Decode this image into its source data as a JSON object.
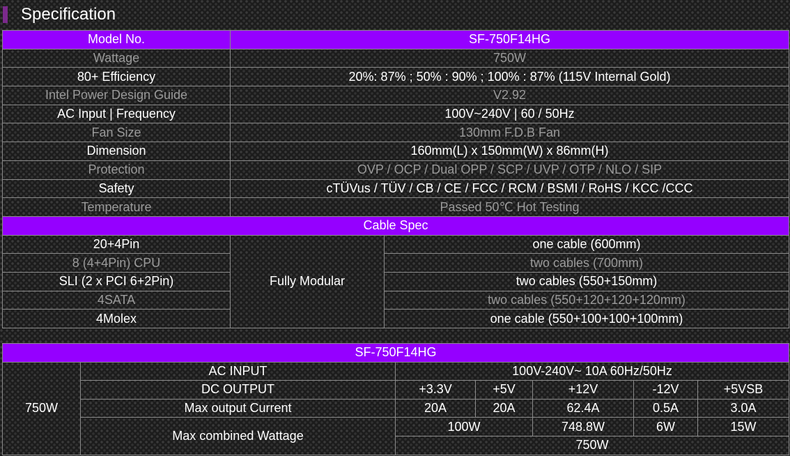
{
  "heading": {
    "title": "Specification"
  },
  "spec": {
    "model_label": "Model No.",
    "model_value": "SF-750F14HG",
    "rows": [
      {
        "label": "Wattage",
        "value": "750W"
      },
      {
        "label": "80+ Efficiency",
        "value": "20%: 87% ; 50% : 90% ; 100% : 87% (115V Internal Gold)"
      },
      {
        "label": "Intel Power Design Guide",
        "value": "V2.92"
      },
      {
        "label": "AC Input | Frequency",
        "value": "100V~240V | 60 / 50Hz"
      },
      {
        "label": "Fan Size",
        "value": "130mm F.D.B Fan"
      },
      {
        "label": "Dimension",
        "value": "160mm(L) x 150mm(W) x 86mm(H)"
      },
      {
        "label": "Protection",
        "value": "OVP / OCP / Dual OPP / SCP / UVP / OTP / NLO / SIP"
      },
      {
        "label": "Safety",
        "value": "cTÜVus / TÜV / CB / CE / FCC / RCM / BSMI / RoHS / KCC /CCC"
      },
      {
        "label": "Temperature",
        "value": "Passed 50℃ Hot Testing"
      }
    ],
    "cable_header": "Cable Spec",
    "modular": "Fully Modular",
    "cables": [
      {
        "connector": "20+4Pin",
        "detail": "one cable (600mm)"
      },
      {
        "connector": "8 (4+4Pin) CPU",
        "detail": "two cables (700mm)"
      },
      {
        "connector": "SLI (2 x PCI 6+2Pin)",
        "detail": "two cables (550+150mm)"
      },
      {
        "connector": "4SATA",
        "detail": "two cables (550+120+120+120mm)"
      },
      {
        "connector": "4Molex",
        "detail": "one cable (550+100+100+100mm)"
      }
    ]
  },
  "power": {
    "model": "SF-750F14HG",
    "wattage": "750W",
    "ac_input_label": "AC INPUT",
    "ac_input_value": "100V-240V~ 10A 60Hz/50Hz",
    "dc_output_label": "DC OUTPUT",
    "rails": [
      "+3.3V",
      "+5V",
      "+12V",
      "-12V",
      "+5VSB"
    ],
    "max_current_label": "Max output Current",
    "currents": [
      "20A",
      "20A",
      "62.4A",
      "0.5A",
      "3.0A"
    ],
    "combined_label": "Max combined Wattage",
    "combined_33_5": "100W",
    "combined_12": "748.8W",
    "combined_n12": "6W",
    "combined_5vsb": "15W",
    "combined_total": "750W"
  }
}
